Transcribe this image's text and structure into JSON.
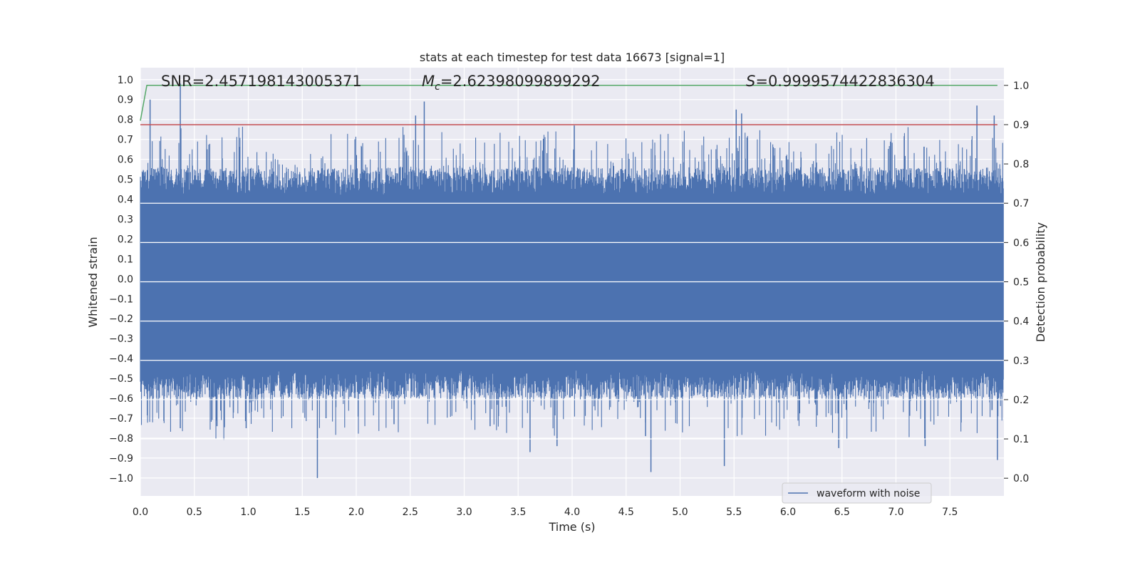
{
  "chart_data": {
    "type": "line",
    "title": "stats at each timestep for test data 16673 [signal=1]",
    "xlabel": "Time (s)",
    "ylabel": "Whitened strain",
    "y2label": "Detection probability",
    "xlim": [
      0.0,
      8.0
    ],
    "ylim": [
      -1.09,
      1.06
    ],
    "y2lim": [
      -0.045,
      1.045
    ],
    "xticks": [
      "0.0",
      "0.5",
      "1.0",
      "1.5",
      "2.0",
      "2.5",
      "3.0",
      "3.5",
      "4.0",
      "4.5",
      "5.0",
      "5.5",
      "6.0",
      "6.5",
      "7.0",
      "7.5"
    ],
    "yticks": [
      "1.0",
      "0.9",
      "0.8",
      "0.7",
      "0.6",
      "0.5",
      "0.4",
      "0.3",
      "0.2",
      "0.1",
      "0.0",
      "−0.1",
      "−0.2",
      "−0.3",
      "−0.4",
      "−0.5",
      "−0.6",
      "−0.7",
      "−0.8",
      "−0.9",
      "−1.0"
    ],
    "y2ticks": [
      "1.0",
      "0.9",
      "0.8",
      "0.7",
      "0.6",
      "0.5",
      "0.4",
      "0.3",
      "0.2",
      "0.1",
      "0.0"
    ],
    "annotations": {
      "snr": "SNR=2.457198143005371",
      "mc_symbol": "M",
      "mc_sub": "c",
      "mc_value": "=2.62398099899292",
      "s_symbol": "S",
      "s_value": "=0.9999574422836304"
    },
    "legend": {
      "label": "waveform with noise",
      "position": "lower-right"
    },
    "series": [
      {
        "name": "waveform with noise",
        "axis": "left",
        "color": "#4c72b0",
        "description": "whitened strain noise, approx. uniform band ±0.45 with spikes",
        "band": [
          -0.42,
          0.38
        ],
        "spikes": [
          {
            "t": 0.37,
            "v": 0.98
          },
          {
            "t": 0.09,
            "v": 0.9
          },
          {
            "t": 2.63,
            "v": 0.89
          },
          {
            "t": 2.55,
            "v": 0.82
          },
          {
            "t": 5.52,
            "v": 0.85
          },
          {
            "t": 5.57,
            "v": 0.83
          },
          {
            "t": 7.75,
            "v": 0.87
          },
          {
            "t": 7.91,
            "v": 0.82
          },
          {
            "t": 4.02,
            "v": 0.77
          },
          {
            "t": 1.64,
            "v": -1.0
          },
          {
            "t": 4.73,
            "v": -0.97
          },
          {
            "t": 5.41,
            "v": -0.94
          },
          {
            "t": 7.94,
            "v": -0.91
          },
          {
            "t": 3.61,
            "v": -0.87
          },
          {
            "t": 6.47,
            "v": -0.85
          },
          {
            "t": 3.86,
            "v": -0.84
          },
          {
            "t": 7.27,
            "v": -0.84
          },
          {
            "t": 4.68,
            "v": -0.79
          },
          {
            "t": 0.37,
            "v": -0.75
          },
          {
            "t": 0.98,
            "v": -0.75
          },
          {
            "t": 0.71,
            "v": -0.74
          },
          {
            "t": 3.24,
            "v": -0.74
          },
          {
            "t": 2.35,
            "v": -0.73
          },
          {
            "t": 1.72,
            "v": -0.7
          }
        ]
      },
      {
        "name": "detection probability",
        "axis": "right",
        "color": "#55a868",
        "x": [
          0.0,
          0.06,
          7.94
        ],
        "y": [
          0.91,
          1.0,
          1.0
        ]
      },
      {
        "name": "threshold",
        "axis": "right",
        "color": "#c44e52",
        "x": [
          0.0,
          7.94
        ],
        "y": [
          0.9,
          0.9
        ]
      }
    ]
  }
}
